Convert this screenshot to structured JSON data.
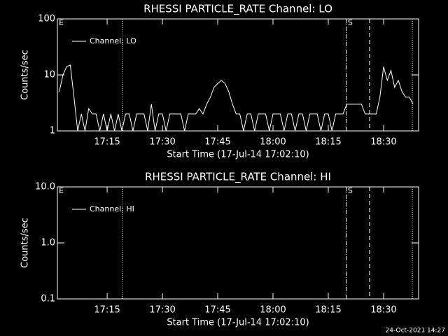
{
  "chart_data": [
    {
      "type": "line",
      "title": "RHESSI PARTICLE_RATE Channel: LO",
      "xlabel": "Start Time (17-Jul-14 17:02:10)",
      "ylabel": "Counts/sec",
      "xlim": [
        1.5,
        99.5
      ],
      "xticks": [
        {
          "value": 15,
          "label": "17:15"
        },
        {
          "value": 30,
          "label": "17:30"
        },
        {
          "value": 45,
          "label": "17:45"
        },
        {
          "value": 60,
          "label": "18:00"
        },
        {
          "value": 75,
          "label": "18:15"
        },
        {
          "value": 90,
          "label": "18:30"
        }
      ],
      "ylim": [
        1,
        100
      ],
      "yticks": [
        1,
        10,
        100
      ],
      "log_y": true,
      "legend": "upper left",
      "series": [
        {
          "name": "Channel: LO",
          "color": "#ffffff",
          "x": [
            2,
            3,
            4,
            5,
            6,
            7,
            8,
            9,
            10,
            11,
            12,
            13,
            14,
            15,
            16,
            17,
            18,
            19,
            20,
            21,
            22,
            23,
            24,
            25,
            26,
            27,
            28,
            29,
            30,
            31,
            32,
            33,
            34,
            35,
            36,
            37,
            38,
            39,
            40,
            41,
            42,
            43,
            44,
            45,
            46,
            47,
            48,
            49,
            50,
            51,
            52,
            53,
            54,
            55,
            56,
            57,
            58,
            59,
            60,
            61,
            62,
            63,
            64,
            65,
            66,
            67,
            68,
            69,
            70,
            71,
            72,
            73,
            74,
            75,
            76,
            77,
            78,
            79,
            80,
            81,
            82,
            83,
            84,
            85,
            86,
            87,
            88,
            89,
            90,
            91,
            92,
            93,
            94,
            95,
            96,
            97,
            98
          ],
          "values": [
            5,
            10,
            14,
            15,
            4,
            1,
            2,
            1,
            2.5,
            2,
            2,
            1,
            2,
            1,
            2,
            1,
            2,
            1,
            2,
            2,
            1,
            2,
            2,
            2,
            1,
            3,
            1,
            2,
            2,
            1,
            2,
            2,
            2,
            2,
            1,
            2,
            2,
            2,
            2.5,
            2,
            3,
            4,
            6,
            7,
            8,
            7,
            5,
            3,
            2,
            2,
            1,
            2,
            2,
            1,
            2,
            2,
            2,
            1,
            2,
            2,
            2,
            1,
            2,
            2,
            1,
            2,
            2,
            1,
            2,
            2,
            2,
            1,
            2,
            2,
            1,
            2,
            2,
            2,
            3,
            3,
            3,
            3,
            3,
            2,
            2,
            2,
            2,
            4,
            14,
            8,
            12,
            6,
            8,
            5,
            4,
            4,
            3
          ]
        }
      ],
      "vlines": [
        {
          "x": 19.2,
          "style": "dotted"
        },
        {
          "x": 79.9,
          "style": "dashdot"
        },
        {
          "x": 86.2,
          "style": "dashed"
        },
        {
          "x": 97.8,
          "style": "dotted"
        }
      ],
      "annotations": [
        {
          "text": "E",
          "x": 1.9
        },
        {
          "text": "S",
          "x": 80.3
        }
      ]
    },
    {
      "type": "line",
      "title": "RHESSI PARTICLE_RATE Channel: HI",
      "xlabel": "Start Time (17-Jul-14 17:02:10)",
      "ylabel": "Counts/sec",
      "xlim": [
        1.5,
        99.5
      ],
      "xticks": [
        {
          "value": 15,
          "label": "17:15"
        },
        {
          "value": 30,
          "label": "17:30"
        },
        {
          "value": 45,
          "label": "17:45"
        },
        {
          "value": 60,
          "label": "18:00"
        },
        {
          "value": 75,
          "label": "18:15"
        },
        {
          "value": 90,
          "label": "18:30"
        }
      ],
      "ylim": [
        0.1,
        10
      ],
      "yticks": [
        0.1,
        {
          "value": 1,
          "label": "1.0"
        },
        {
          "value": 10,
          "label": "10.0"
        }
      ],
      "log_y": true,
      "legend": "upper left",
      "series": [
        {
          "name": "Channel: HI",
          "color": "#ffffff",
          "x": [],
          "values": []
        }
      ],
      "vlines": [
        {
          "x": 19.2,
          "style": "dotted"
        },
        {
          "x": 79.9,
          "style": "dashdot"
        },
        {
          "x": 86.2,
          "style": "dashed"
        },
        {
          "x": 97.8,
          "style": "dotted"
        }
      ],
      "annotations": [
        {
          "text": "E",
          "x": 1.9
        },
        {
          "text": "S",
          "x": 80.3
        }
      ]
    }
  ],
  "footer": "24-Oct-2021 14:27"
}
